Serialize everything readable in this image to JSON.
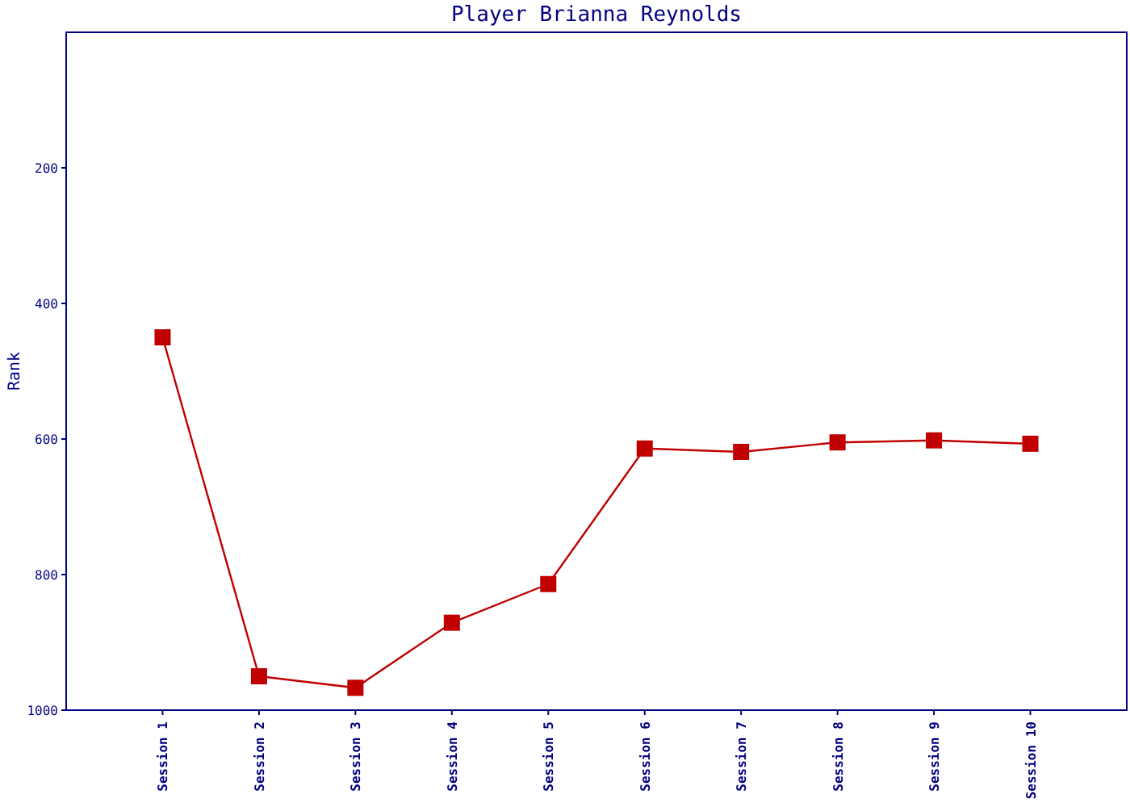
{
  "chart_data": {
    "type": "line",
    "title": "Player Brianna Reynolds",
    "ylabel": "Rank",
    "categories": [
      "Session 1",
      "Session 2",
      "Session 3",
      "Session 4",
      "Session 5",
      "Session 6",
      "Session 7",
      "Session 8",
      "Session 9",
      "Session 10"
    ],
    "series": [
      {
        "color": "#c00000",
        "values": [
          450,
          950,
          967,
          871,
          814,
          614,
          619,
          605,
          602,
          607
        ]
      }
    ],
    "ylim": [
      1000,
      0
    ],
    "yticks": [
      200,
      400,
      600,
      800,
      1000
    ],
    "marker": "square",
    "line_style": "solid"
  }
}
